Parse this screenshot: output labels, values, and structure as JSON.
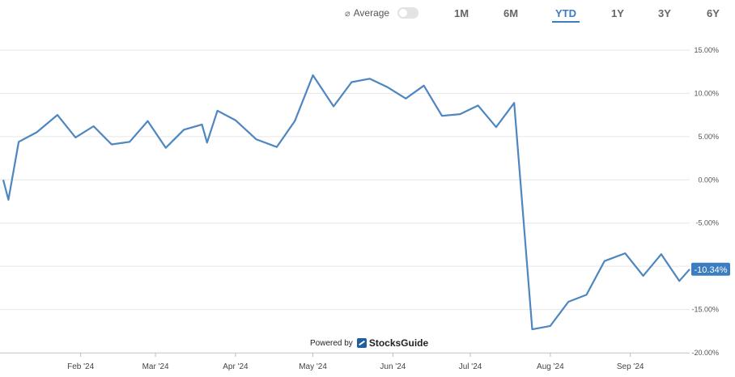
{
  "toolbar": {
    "average_label": "Average",
    "average_icon": "slash-circle-icon",
    "ranges": [
      "1M",
      "6M",
      "YTD",
      "1Y",
      "3Y",
      "6Y"
    ],
    "active_range": "YTD"
  },
  "colors": {
    "line": "#4e86c0",
    "accent": "#3b7dbf",
    "grid": "#e6e6e6"
  },
  "footer": {
    "powered_by": "Powered by",
    "brand": "StocksGuide"
  },
  "chart_data": {
    "type": "line",
    "x_axis_labels": [
      "Feb '24",
      "Mar '24",
      "Apr '24",
      "May '24",
      "Jun '24",
      "Jul '24",
      "Aug '24",
      "Sep '24"
    ],
    "y_tick_labels": [
      "15.00%",
      "10.00%",
      "5.00%",
      "0.00%",
      "-5.00%",
      "-10.00%",
      "-15.00%",
      "-20.00%"
    ],
    "ylim": [
      -20,
      15
    ],
    "grid": true,
    "last_value_label": "-10.34%",
    "series": [
      {
        "values": [
          {
            "x": "2024-01-02",
            "y": 0.0
          },
          {
            "x": "2024-01-04",
            "y": -2.3
          },
          {
            "x": "2024-01-08",
            "y": 4.4
          },
          {
            "x": "2024-01-15",
            "y": 5.5
          },
          {
            "x": "2024-01-23",
            "y": 7.5
          },
          {
            "x": "2024-01-30",
            "y": 4.9
          },
          {
            "x": "2024-02-06",
            "y": 6.2
          },
          {
            "x": "2024-02-13",
            "y": 4.1
          },
          {
            "x": "2024-02-20",
            "y": 4.4
          },
          {
            "x": "2024-02-27",
            "y": 6.8
          },
          {
            "x": "2024-03-05",
            "y": 3.7
          },
          {
            "x": "2024-03-12",
            "y": 5.8
          },
          {
            "x": "2024-03-19",
            "y": 6.4
          },
          {
            "x": "2024-03-21",
            "y": 4.3
          },
          {
            "x": "2024-03-25",
            "y": 8.0
          },
          {
            "x": "2024-04-01",
            "y": 6.9
          },
          {
            "x": "2024-04-09",
            "y": 4.7
          },
          {
            "x": "2024-04-17",
            "y": 3.8
          },
          {
            "x": "2024-04-24",
            "y": 6.8
          },
          {
            "x": "2024-05-01",
            "y": 12.1
          },
          {
            "x": "2024-05-09",
            "y": 8.5
          },
          {
            "x": "2024-05-16",
            "y": 11.3
          },
          {
            "x": "2024-05-23",
            "y": 11.7
          },
          {
            "x": "2024-05-30",
            "y": 10.7
          },
          {
            "x": "2024-06-06",
            "y": 9.4
          },
          {
            "x": "2024-06-13",
            "y": 10.9
          },
          {
            "x": "2024-06-20",
            "y": 7.4
          },
          {
            "x": "2024-06-27",
            "y": 7.6
          },
          {
            "x": "2024-07-04",
            "y": 8.6
          },
          {
            "x": "2024-07-11",
            "y": 6.1
          },
          {
            "x": "2024-07-18",
            "y": 8.9
          },
          {
            "x": "2024-07-25",
            "y": -17.3
          },
          {
            "x": "2024-08-01",
            "y": -16.9
          },
          {
            "x": "2024-08-08",
            "y": -14.1
          },
          {
            "x": "2024-08-15",
            "y": -13.3
          },
          {
            "x": "2024-08-22",
            "y": -9.4
          },
          {
            "x": "2024-08-30",
            "y": -8.5
          },
          {
            "x": "2024-09-06",
            "y": -11.1
          },
          {
            "x": "2024-09-13",
            "y": -8.6
          },
          {
            "x": "2024-09-20",
            "y": -11.7
          },
          {
            "x": "2024-09-24",
            "y": -10.34
          }
        ]
      }
    ]
  }
}
